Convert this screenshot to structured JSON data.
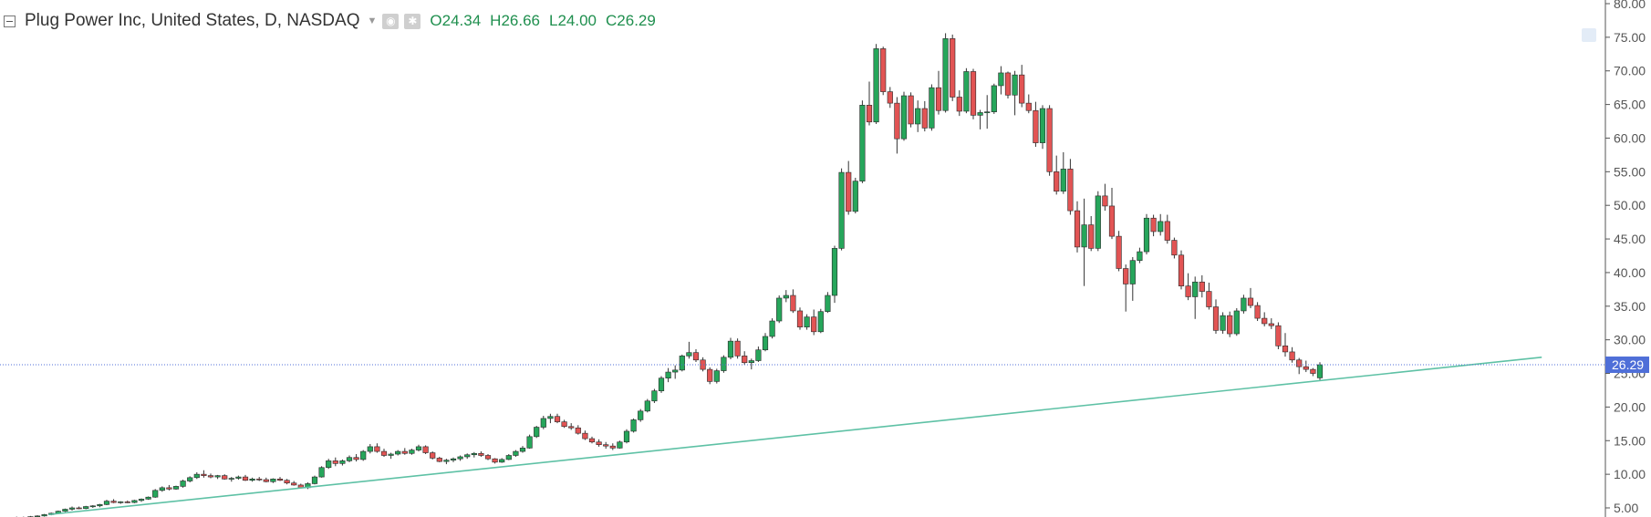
{
  "legend": {
    "symbol": "Plug Power Inc, United States, D, NASDAQ",
    "open_key": "O",
    "open": "24.34",
    "high_key": "H",
    "high": "26.66",
    "low_key": "L",
    "low": "24.00",
    "close_key": "C",
    "close": "26.29"
  },
  "colors": {
    "up": "#26a65b",
    "down": "#e25454",
    "wick": "#333333",
    "trendline": "#5ec1a5",
    "price_line": "#4f6fd8",
    "price_tag": "#4f6fd8"
  },
  "chart_data": {
    "type": "candlestick",
    "y_axis": {
      "min": 5,
      "max": 80,
      "ticks": [
        "80.00",
        "75.00",
        "70.00",
        "65.00",
        "60.00",
        "55.00",
        "50.00",
        "45.00",
        "40.00",
        "35.00",
        "30.00",
        "25.00",
        "20.00",
        "15.00",
        "10.00",
        "5.00"
      ]
    },
    "current_price": 26.29,
    "current_price_label": "26.29",
    "trendline": {
      "from": {
        "bar": 0,
        "price": 4.0
      },
      "to": {
        "bar": 222,
        "price": 27.4
      }
    },
    "candles": [
      [
        3.4,
        3.5,
        3.3,
        3.45
      ],
      [
        3.45,
        3.6,
        3.4,
        3.5
      ],
      [
        3.5,
        3.7,
        3.4,
        3.6
      ],
      [
        3.6,
        3.7,
        3.5,
        3.55
      ],
      [
        3.55,
        3.8,
        3.5,
        3.7
      ],
      [
        3.7,
        3.9,
        3.6,
        3.8
      ],
      [
        3.8,
        4.1,
        3.7,
        4.0
      ],
      [
        4.0,
        4.3,
        3.9,
        4.2
      ],
      [
        4.2,
        4.6,
        4.1,
        4.5
      ],
      [
        4.5,
        4.9,
        4.4,
        4.8
      ],
      [
        4.8,
        5.2,
        4.6,
        5.0
      ],
      [
        5.0,
        5.2,
        4.8,
        4.9
      ],
      [
        4.9,
        5.3,
        4.8,
        5.2
      ],
      [
        5.2,
        5.4,
        5.0,
        5.3
      ],
      [
        5.3,
        5.6,
        5.1,
        5.5
      ],
      [
        5.5,
        6.2,
        5.4,
        6.0
      ],
      [
        6.0,
        6.3,
        5.7,
        5.8
      ],
      [
        5.8,
        6.0,
        5.6,
        5.9
      ],
      [
        5.9,
        6.1,
        5.7,
        5.8
      ],
      [
        5.8,
        6.2,
        5.7,
        6.1
      ],
      [
        6.1,
        6.4,
        5.9,
        6.3
      ],
      [
        6.3,
        6.7,
        6.2,
        6.6
      ],
      [
        6.6,
        7.8,
        6.5,
        7.6
      ],
      [
        7.6,
        8.2,
        7.4,
        8.0
      ],
      [
        8.0,
        8.4,
        7.6,
        7.8
      ],
      [
        7.8,
        8.3,
        7.7,
        8.2
      ],
      [
        8.2,
        9.2,
        8.0,
        9.0
      ],
      [
        9.0,
        9.7,
        8.8,
        9.5
      ],
      [
        9.5,
        10.3,
        9.3,
        10.0
      ],
      [
        10.0,
        10.6,
        9.5,
        9.8
      ],
      [
        9.8,
        10.1,
        9.4,
        9.6
      ],
      [
        9.6,
        9.9,
        9.3,
        9.8
      ],
      [
        9.8,
        10.0,
        9.2,
        9.3
      ],
      [
        9.3,
        9.6,
        8.9,
        9.4
      ],
      [
        9.4,
        9.8,
        9.2,
        9.6
      ],
      [
        9.6,
        9.9,
        9.0,
        9.1
      ],
      [
        9.1,
        9.5,
        8.9,
        9.3
      ],
      [
        9.3,
        9.6,
        9.0,
        9.2
      ],
      [
        9.2,
        9.5,
        8.8,
        8.9
      ],
      [
        8.9,
        9.4,
        8.7,
        9.3
      ],
      [
        9.3,
        9.6,
        9.0,
        9.1
      ],
      [
        9.1,
        9.3,
        8.5,
        8.7
      ],
      [
        8.7,
        9.0,
        8.3,
        8.4
      ],
      [
        8.4,
        8.6,
        7.9,
        8.0
      ],
      [
        8.0,
        8.8,
        7.8,
        8.6
      ],
      [
        8.6,
        9.8,
        8.5,
        9.6
      ],
      [
        9.6,
        11.2,
        9.5,
        11.0
      ],
      [
        11.0,
        12.3,
        10.8,
        12.0
      ],
      [
        12.0,
        12.5,
        11.2,
        11.6
      ],
      [
        11.6,
        12.2,
        11.3,
        12.0
      ],
      [
        12.0,
        12.8,
        11.8,
        12.5
      ],
      [
        12.5,
        13.0,
        11.9,
        12.2
      ],
      [
        12.2,
        13.6,
        12.0,
        13.4
      ],
      [
        13.4,
        14.5,
        13.1,
        14.1
      ],
      [
        14.1,
        14.6,
        13.2,
        13.4
      ],
      [
        13.4,
        13.8,
        12.6,
        12.8
      ],
      [
        12.8,
        13.2,
        12.3,
        13.0
      ],
      [
        13.0,
        13.6,
        12.8,
        13.4
      ],
      [
        13.4,
        13.9,
        12.9,
        13.1
      ],
      [
        13.1,
        13.8,
        12.9,
        13.6
      ],
      [
        13.6,
        14.4,
        13.4,
        14.1
      ],
      [
        14.1,
        14.3,
        13.0,
        13.2
      ],
      [
        13.2,
        13.4,
        12.2,
        12.4
      ],
      [
        12.4,
        12.6,
        11.8,
        11.9
      ],
      [
        11.9,
        12.3,
        11.5,
        12.1
      ],
      [
        12.1,
        12.5,
        11.8,
        12.3
      ],
      [
        12.3,
        12.8,
        12.0,
        12.6
      ],
      [
        12.6,
        13.1,
        12.3,
        12.9
      ],
      [
        12.9,
        13.3,
        12.5,
        13.1
      ],
      [
        13.1,
        13.4,
        12.6,
        12.8
      ],
      [
        12.8,
        13.0,
        12.1,
        12.3
      ],
      [
        12.3,
        12.4,
        11.6,
        11.8
      ],
      [
        11.8,
        12.4,
        11.7,
        12.2
      ],
      [
        12.2,
        13.0,
        12.1,
        12.8
      ],
      [
        12.8,
        13.6,
        12.6,
        13.4
      ],
      [
        13.4,
        14.2,
        13.2,
        13.9
      ],
      [
        13.9,
        15.9,
        13.8,
        15.6
      ],
      [
        15.6,
        17.2,
        15.4,
        17.0
      ],
      [
        17.0,
        18.7,
        16.7,
        18.3
      ],
      [
        18.3,
        19.0,
        17.6,
        18.6
      ],
      [
        18.6,
        19.0,
        17.6,
        17.8
      ],
      [
        17.8,
        18.1,
        16.9,
        17.1
      ],
      [
        17.1,
        17.6,
        16.6,
        16.9
      ],
      [
        16.9,
        17.3,
        15.9,
        16.1
      ],
      [
        16.1,
        16.5,
        15.1,
        15.3
      ],
      [
        15.3,
        15.6,
        14.6,
        14.8
      ],
      [
        14.8,
        15.2,
        14.1,
        14.4
      ],
      [
        14.4,
        14.8,
        13.8,
        14.2
      ],
      [
        14.2,
        14.6,
        13.6,
        13.9
      ],
      [
        13.9,
        15.0,
        13.8,
        14.8
      ],
      [
        14.8,
        16.7,
        14.6,
        16.4
      ],
      [
        16.4,
        18.3,
        16.2,
        18.1
      ],
      [
        18.1,
        19.7,
        17.8,
        19.4
      ],
      [
        19.4,
        21.2,
        19.2,
        20.9
      ],
      [
        20.9,
        22.7,
        20.6,
        22.4
      ],
      [
        22.4,
        24.6,
        22.1,
        24.3
      ],
      [
        24.3,
        25.8,
        23.7,
        25.2
      ],
      [
        25.2,
        26.2,
        24.2,
        25.5
      ],
      [
        25.5,
        27.8,
        25.3,
        27.6
      ],
      [
        27.6,
        29.7,
        27.2,
        28.1
      ],
      [
        28.1,
        28.6,
        26.7,
        27.0
      ],
      [
        27.0,
        27.4,
        25.3,
        25.6
      ],
      [
        25.6,
        25.9,
        23.4,
        23.8
      ],
      [
        23.8,
        25.7,
        23.5,
        25.4
      ],
      [
        25.4,
        27.7,
        25.1,
        27.4
      ],
      [
        27.4,
        30.3,
        27.1,
        29.8
      ],
      [
        29.8,
        30.2,
        27.2,
        27.6
      ],
      [
        27.6,
        28.3,
        26.3,
        26.6
      ],
      [
        26.6,
        27.2,
        25.6,
        26.9
      ],
      [
        26.9,
        29.0,
        26.7,
        28.5
      ],
      [
        28.5,
        31.0,
        28.3,
        30.5
      ],
      [
        30.5,
        33.2,
        30.2,
        32.8
      ],
      [
        32.8,
        36.6,
        32.5,
        36.2
      ],
      [
        36.2,
        37.4,
        35.6,
        36.6
      ],
      [
        36.6,
        37.5,
        34.0,
        34.3
      ],
      [
        34.3,
        34.8,
        31.5,
        31.9
      ],
      [
        31.9,
        33.8,
        31.5,
        33.4
      ],
      [
        33.4,
        34.5,
        30.7,
        31.2
      ],
      [
        31.2,
        34.6,
        31.0,
        34.2
      ],
      [
        34.2,
        37.1,
        34.0,
        36.6
      ],
      [
        36.6,
        44.0,
        35.5,
        43.6
      ],
      [
        43.6,
        55.5,
        43.3,
        54.9
      ],
      [
        54.9,
        56.6,
        48.6,
        49.1
      ],
      [
        49.1,
        54.1,
        48.8,
        53.6
      ],
      [
        53.6,
        65.6,
        53.3,
        64.9
      ],
      [
        64.9,
        68.4,
        61.9,
        62.4
      ],
      [
        62.4,
        74.0,
        62.1,
        73.3
      ],
      [
        73.3,
        73.6,
        66.4,
        66.9
      ],
      [
        66.9,
        67.6,
        64.5,
        65.2
      ],
      [
        65.2,
        66.1,
        57.7,
        59.9
      ],
      [
        59.9,
        66.9,
        59.6,
        66.3
      ],
      [
        66.3,
        66.8,
        61.6,
        62.1
      ],
      [
        62.1,
        65.6,
        60.9,
        64.4
      ],
      [
        64.4,
        65.5,
        61.0,
        61.5
      ],
      [
        61.5,
        68.0,
        61.1,
        67.5
      ],
      [
        67.5,
        70.0,
        63.5,
        64.1
      ],
      [
        64.1,
        75.6,
        63.8,
        74.8
      ],
      [
        74.8,
        75.4,
        65.5,
        66.1
      ],
      [
        66.1,
        67.1,
        63.3,
        64.0
      ],
      [
        64.0,
        70.4,
        63.7,
        69.9
      ],
      [
        69.9,
        70.3,
        62.8,
        63.4
      ],
      [
        63.4,
        64.2,
        61.3,
        63.8
      ],
      [
        63.8,
        66.4,
        61.4,
        63.9
      ],
      [
        63.9,
        68.1,
        63.6,
        67.8
      ],
      [
        67.8,
        70.7,
        66.5,
        69.7
      ],
      [
        69.7,
        69.9,
        65.9,
        66.4
      ],
      [
        66.4,
        70.0,
        63.4,
        69.4
      ],
      [
        69.4,
        70.9,
        64.6,
        65.2
      ],
      [
        65.2,
        66.5,
        63.7,
        64.1
      ],
      [
        64.1,
        65.4,
        58.7,
        59.3
      ],
      [
        59.3,
        64.9,
        58.4,
        64.4
      ],
      [
        64.4,
        64.9,
        54.4,
        55.0
      ],
      [
        55.0,
        57.4,
        51.6,
        52.1
      ],
      [
        52.1,
        57.9,
        51.7,
        55.4
      ],
      [
        55.4,
        56.9,
        48.6,
        49.2
      ],
      [
        49.2,
        50.6,
        43.0,
        43.8
      ],
      [
        43.8,
        51.0,
        38.0,
        47.1
      ],
      [
        47.1,
        48.4,
        43.2,
        43.6
      ],
      [
        43.6,
        52.1,
        43.2,
        51.4
      ],
      [
        51.4,
        53.2,
        49.2,
        49.9
      ],
      [
        49.9,
        52.6,
        45.0,
        45.4
      ],
      [
        45.4,
        46.2,
        40.2,
        40.6
      ],
      [
        40.6,
        41.2,
        34.2,
        38.3
      ],
      [
        38.3,
        42.3,
        35.8,
        41.8
      ],
      [
        41.8,
        43.7,
        41.4,
        43.1
      ],
      [
        43.1,
        48.7,
        42.7,
        48.1
      ],
      [
        48.1,
        48.6,
        45.4,
        46.1
      ],
      [
        46.1,
        48.7,
        45.5,
        47.6
      ],
      [
        47.6,
        48.6,
        44.3,
        44.8
      ],
      [
        44.8,
        45.2,
        42.1,
        42.6
      ],
      [
        42.6,
        43.3,
        37.5,
        38.0
      ],
      [
        38.0,
        39.9,
        35.9,
        36.4
      ],
      [
        36.4,
        39.4,
        33.1,
        38.6
      ],
      [
        38.6,
        39.6,
        36.3,
        37.2
      ],
      [
        37.2,
        38.5,
        34.5,
        34.9
      ],
      [
        34.9,
        36.0,
        30.9,
        31.4
      ],
      [
        31.4,
        34.1,
        30.9,
        33.6
      ],
      [
        33.6,
        34.2,
        30.4,
        30.9
      ],
      [
        30.9,
        34.7,
        30.6,
        34.3
      ],
      [
        34.3,
        36.7,
        33.9,
        36.2
      ],
      [
        36.2,
        37.7,
        34.7,
        35.1
      ],
      [
        35.1,
        35.6,
        32.8,
        33.2
      ],
      [
        33.2,
        34.1,
        32.0,
        32.4
      ],
      [
        32.4,
        33.2,
        31.6,
        32.1
      ],
      [
        32.1,
        32.6,
        28.6,
        29.1
      ],
      [
        29.1,
        31.0,
        27.5,
        28.2
      ],
      [
        28.2,
        28.9,
        26.6,
        27.0
      ],
      [
        27.0,
        27.3,
        24.9,
        26.0
      ],
      [
        26.0,
        26.9,
        25.2,
        25.6
      ],
      [
        25.6,
        25.8,
        24.6,
        25.0
      ],
      [
        24.34,
        26.66,
        24.0,
        26.29
      ]
    ]
  }
}
